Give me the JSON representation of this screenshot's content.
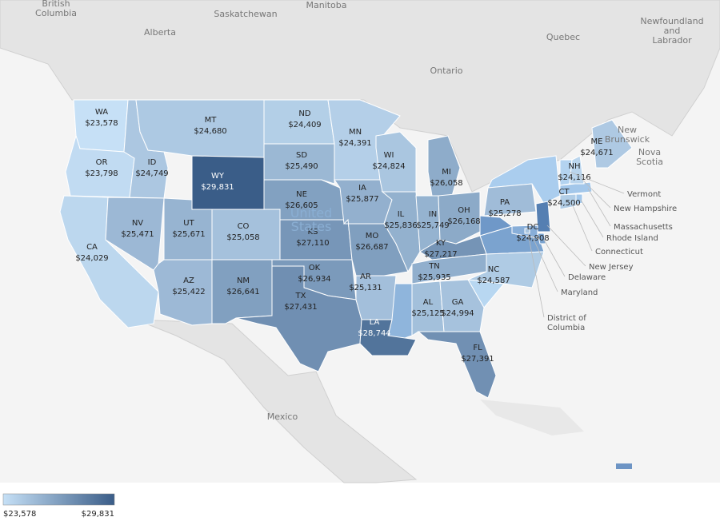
{
  "chart_data": {
    "type": "choropleth",
    "categories": [
      "WA",
      "OR",
      "CA",
      "ID",
      "NV",
      "MT",
      "WY",
      "UT",
      "AZ",
      "CO",
      "NM",
      "ND",
      "SD",
      "NE",
      "KS",
      "OK",
      "TX",
      "MN",
      "IA",
      "MO",
      "AR",
      "LA",
      "WI",
      "IL",
      "MI",
      "IN",
      "KY",
      "TN",
      "AL",
      "GA",
      "FL",
      "OH",
      "PA",
      "NC",
      "ME",
      "NH",
      "CT",
      "DC"
    ],
    "values": [
      23578,
      23798,
      24029,
      24749,
      25471,
      24680,
      29831,
      25671,
      25422,
      25058,
      26641,
      24409,
      25490,
      26605,
      27110,
      26934,
      27431,
      24391,
      25877,
      26687,
      25131,
      28744,
      24824,
      25836,
      26058,
      25749,
      27217,
      25935,
      25125,
      24994,
      27391,
      26168,
      25278,
      24587,
      24671,
      24116,
      24500,
      24908
    ],
    "value_labels": [
      "$23,578",
      "$23,798",
      "$24,029",
      "$24,749",
      "$25,471",
      "$24,680",
      "$29,831",
      "$25,671",
      "$25,422",
      "$25,058",
      "$26,641",
      "$24,409",
      "$25,490",
      "$26,605",
      "$27,110",
      "$26,934",
      "$27,431",
      "$24,391",
      "$25,877",
      "$26,687",
      "$25,131",
      "$28,744",
      "$24,824",
      "$25,836",
      "$26,058",
      "$25,749",
      "$27,217",
      "$25,935",
      "$25,125",
      "$24,994",
      "$27,391",
      "$26,168",
      "$25,278",
      "$24,587",
      "$24,671",
      "$24,116",
      "$24,500",
      "$24,908"
    ],
    "color_range": [
      "#c6e0f6",
      "#3a5d88"
    ],
    "legend_ticks": [
      {
        "value": 23578,
        "label": "$23,578"
      },
      {
        "value": 29831,
        "label": "$29,831"
      }
    ],
    "place_labels": [
      [
        "British",
        "Columbia"
      ],
      [
        "Alberta"
      ],
      [
        "Saskatchewan"
      ],
      [
        "Manitoba"
      ],
      [
        "Quebec"
      ],
      [
        "Ontario"
      ],
      [
        "Newfoundland",
        "and",
        "Labrador"
      ],
      [
        "New",
        "Brunswick"
      ],
      [
        "Nova",
        "Scotia"
      ],
      [
        "Mexico"
      ],
      [
        "United",
        "States"
      ]
    ],
    "callouts": [
      [
        "Vermont"
      ],
      [
        "New Hampshire"
      ],
      [
        "Massachusetts"
      ],
      [
        "Rhode Island"
      ],
      [
        "Connecticut"
      ],
      [
        "New Jersey"
      ],
      [
        "Delaware"
      ],
      [
        "Maryland"
      ],
      [
        "District of",
        "Columbia"
      ]
    ]
  }
}
